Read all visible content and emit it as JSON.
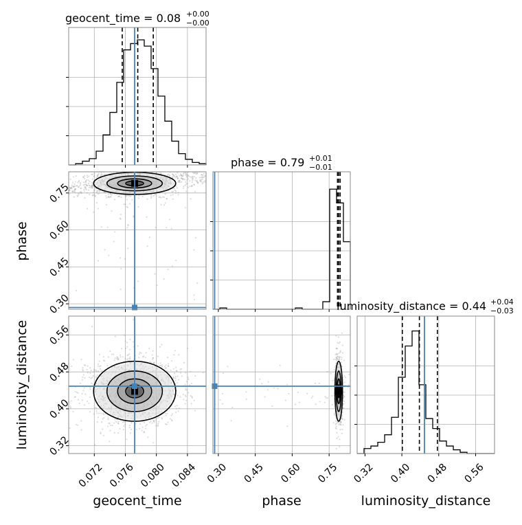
{
  "colors": {
    "truth": "#4682b4",
    "line": "#000000",
    "grid": "#b0b0b0",
    "scatter": "#9a9a9a"
  },
  "titles": {
    "geocent": {
      "main": "geocent_time = 0.08",
      "sup": "+0.00",
      "sub": "−0.00"
    },
    "phase": {
      "main": "phase = 0.79",
      "sup": "+0.01",
      "sub": "−0.01"
    },
    "lum": {
      "main": "luminosity_distance = 0.44",
      "sup": "+0.04",
      "sub": "−0.03"
    }
  },
  "axis_labels": {
    "x0": "geocent_time",
    "x1": "phase",
    "x2": "luminosity_distance",
    "y1": "phase",
    "y2": "luminosity_distance"
  },
  "chart_data": {
    "type": "corner",
    "parameters": [
      "geocent_time",
      "phase",
      "luminosity_distance"
    ],
    "ranges": {
      "geocent_time": [
        0.0687,
        0.0864
      ],
      "phase": [
        0.278,
        0.836
      ],
      "luminosity_distance": [
        0.303,
        0.601
      ]
    },
    "ticks": {
      "geocent_time": {
        "values": [
          0.072,
          0.076,
          0.08,
          0.084
        ],
        "labels": [
          "0.072",
          "0.076",
          "0.080",
          "0.084"
        ]
      },
      "phase": {
        "values": [
          0.3,
          0.45,
          0.6,
          0.75
        ],
        "labels": [
          "0.30",
          "0.45",
          "0.60",
          "0.75"
        ]
      },
      "luminosity_distance": {
        "values": [
          0.32,
          0.4,
          0.48,
          0.56
        ],
        "labels": [
          "0.32",
          "0.40",
          "0.48",
          "0.56"
        ]
      }
    },
    "truths": {
      "geocent_time": 0.0772,
      "phase": 0.285,
      "luminosity_distance": 0.449
    },
    "quantiles": {
      "geocent_time": [
        0.0756,
        0.0776,
        0.0796
      ],
      "phase": [
        0.784,
        0.789,
        0.795
      ],
      "luminosity_distance": [
        0.401,
        0.438,
        0.477
      ]
    },
    "marginals": {
      "geocent_time": [
        0.0,
        0.01,
        0.03,
        0.05,
        0.11,
        0.24,
        0.42,
        0.66,
        0.92,
        0.97,
        1.0,
        0.95,
        0.77,
        0.55,
        0.35,
        0.19,
        0.09,
        0.045,
        0.02,
        0.01
      ],
      "phase": [
        0.0,
        0.01,
        0.0,
        0.0,
        0.0,
        0.0,
        0.0,
        0.0,
        0.0,
        0.0,
        0.0,
        0.0,
        0.01,
        0.0,
        0.0,
        0.0,
        0.06,
        0.96,
        0.85,
        0.54
      ],
      "luminosity_distance": [
        0.0,
        0.04,
        0.06,
        0.09,
        0.15,
        0.29,
        0.61,
        0.86,
        0.98,
        0.55,
        0.28,
        0.2,
        0.1,
        0.06,
        0.03,
        0.01,
        0.0,
        0.0,
        0.0,
        0.0
      ]
    },
    "density_peaks": {
      "geocent_time_vs_phase": {
        "x": 0.0772,
        "y": 0.789
      },
      "geocent_time_vs_luminosity_distance": {
        "x": 0.0772,
        "y": 0.438
      },
      "phase_vs_luminosity_distance": {
        "x": 0.789,
        "y": 0.438
      }
    }
  }
}
